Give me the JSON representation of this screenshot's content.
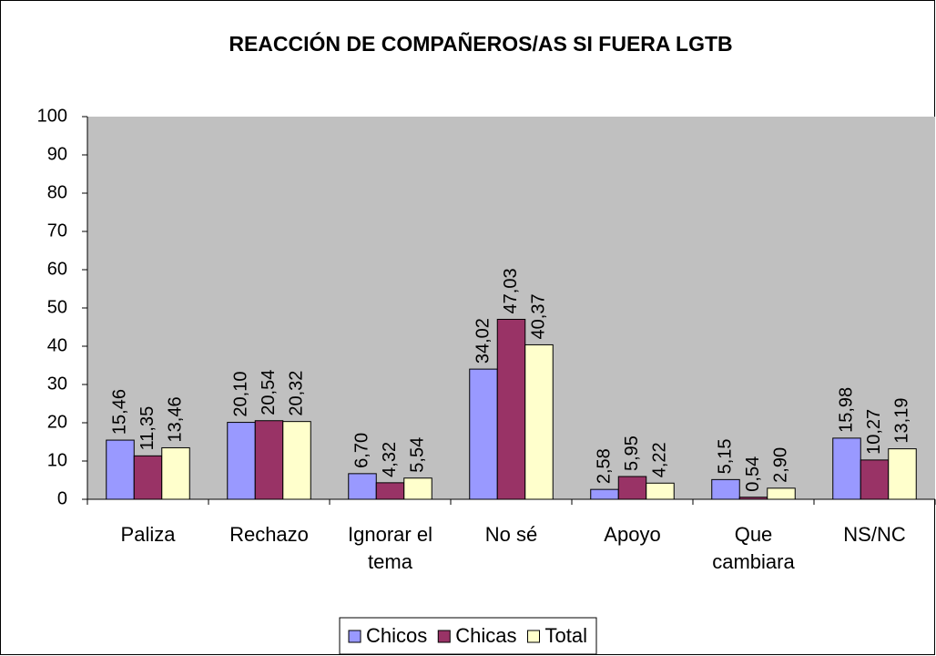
{
  "chart_data": {
    "type": "bar",
    "title": "REACCIÓN DE COMPAÑEROS/AS SI FUERA LGTB",
    "categories": [
      "Paliza",
      "Rechazo",
      "Ignorar el tema",
      "No sé",
      "Apoyo",
      "Que cambiara",
      "NS/NC"
    ],
    "series": [
      {
        "name": "Chicos",
        "color": "#9999ff",
        "values": [
          15.46,
          20.1,
          6.7,
          34.02,
          2.58,
          5.15,
          15.98
        ],
        "value_labels": [
          "15,46",
          "20,10",
          "6,70",
          "34,02",
          "2,58",
          "5,15",
          "15,98"
        ]
      },
      {
        "name": "Chicas",
        "color": "#993366",
        "values": [
          11.35,
          20.54,
          4.32,
          47.03,
          5.95,
          0.54,
          10.27
        ],
        "value_labels": [
          "11,35",
          "20,54",
          "4,32",
          "47,03",
          "5,95",
          "0,54",
          "10,27"
        ]
      },
      {
        "name": "Total",
        "color": "#ffffcc",
        "values": [
          13.46,
          20.32,
          5.54,
          40.37,
          4.22,
          2.9,
          13.19
        ],
        "value_labels": [
          "13,46",
          "20,32",
          "5,54",
          "40,37",
          "4,22",
          "2,90",
          "13,19"
        ]
      }
    ],
    "ylim": [
      0,
      100
    ],
    "yticks": [
      0,
      10,
      20,
      30,
      40,
      50,
      60,
      70,
      80,
      90,
      100
    ],
    "plot_background": "#c0c0c0",
    "legend": "bottom"
  }
}
